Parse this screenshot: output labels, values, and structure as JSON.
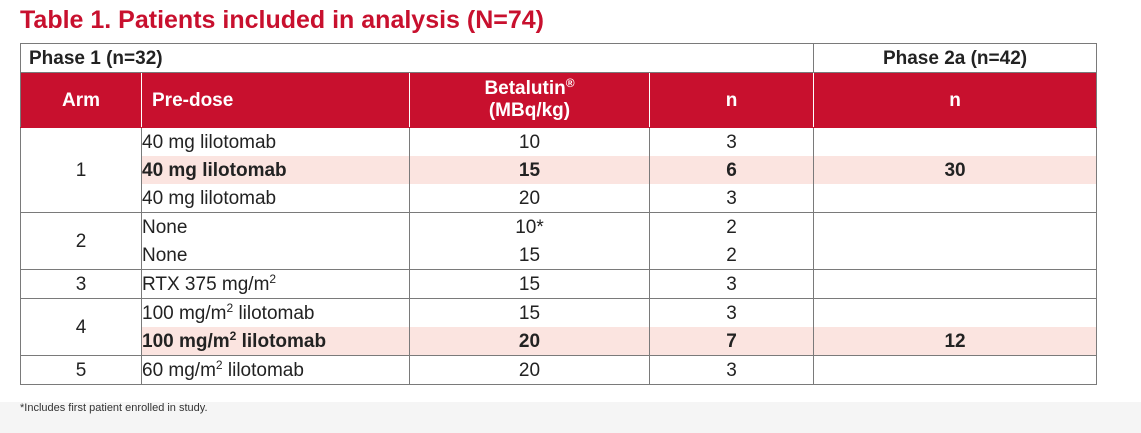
{
  "title": "Table 1. Patients included in analysis (N=74)",
  "phase1_label": "Phase 1 (n=32)",
  "phase2a_label": "Phase 2a (n=42)",
  "headers": {
    "arm": "Arm",
    "predose": "Pre-dose",
    "betalutin_line1": "Betalutin",
    "betalutin_reg": "®",
    "betalutin_line2": "(MBq/kg)",
    "n_phase1": "n",
    "n_phase2a": "n"
  },
  "arms": [
    {
      "arm": "1",
      "rows": [
        {
          "predose": "40 mg lilotomab",
          "predose_sup": "",
          "predose_tail": "",
          "dose": "10",
          "n": "3",
          "phase2a_n": "",
          "highlight": false
        },
        {
          "predose": "40 mg lilotomab",
          "predose_sup": "",
          "predose_tail": "",
          "dose": "15",
          "n": "6",
          "phase2a_n": "30",
          "highlight": true
        },
        {
          "predose": "40 mg lilotomab",
          "predose_sup": "",
          "predose_tail": "",
          "dose": "20",
          "n": "3",
          "phase2a_n": "",
          "highlight": false
        }
      ]
    },
    {
      "arm": "2",
      "rows": [
        {
          "predose": "None",
          "predose_sup": "",
          "predose_tail": "",
          "dose": "10*",
          "n": "2",
          "phase2a_n": "",
          "highlight": false
        },
        {
          "predose": "None",
          "predose_sup": "",
          "predose_tail": "",
          "dose": "15",
          "n": "2",
          "phase2a_n": "",
          "highlight": false
        }
      ]
    },
    {
      "arm": "3",
      "rows": [
        {
          "predose": "RTX 375 mg/m",
          "predose_sup": "2",
          "predose_tail": "",
          "dose": "15",
          "n": "3",
          "phase2a_n": "",
          "highlight": false
        }
      ]
    },
    {
      "arm": "4",
      "rows": [
        {
          "predose": "100 mg/m",
          "predose_sup": "2",
          "predose_tail": " lilotomab",
          "dose": "15",
          "n": "3",
          "phase2a_n": "",
          "highlight": false
        },
        {
          "predose": "100 mg/m",
          "predose_sup": "2",
          "predose_tail": " lilotomab",
          "dose": "20",
          "n": "7",
          "phase2a_n": "12",
          "highlight": true
        }
      ]
    },
    {
      "arm": "5",
      "rows": [
        {
          "predose": "60 mg/m",
          "predose_sup": "2",
          "predose_tail": " lilotomab",
          "dose": "20",
          "n": "3",
          "phase2a_n": "",
          "highlight": false
        }
      ]
    }
  ],
  "footnote": "*Includes first patient enrolled in study.",
  "colors": {
    "accent_red": "#c8102e",
    "highlight_row": "#fbe4e0",
    "grid": "#7a7a7a"
  }
}
